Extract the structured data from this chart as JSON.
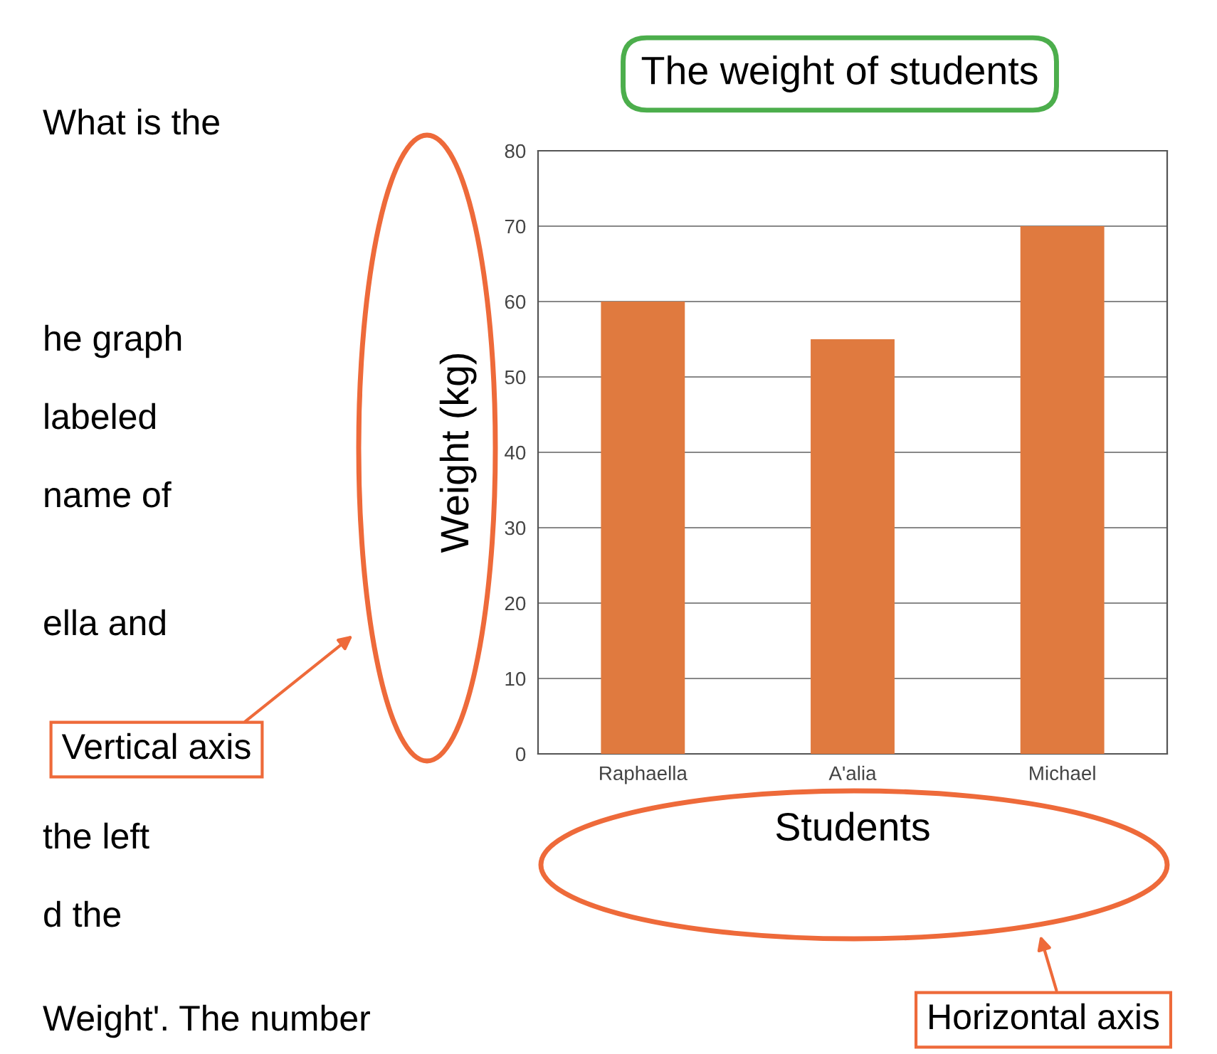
{
  "chart_data": {
    "type": "bar",
    "title": "The weight of students",
    "xlabel": "Students",
    "ylabel": "Weight (kg)",
    "categories": [
      "Raphaella",
      "A'alia",
      "Michael"
    ],
    "values": [
      60,
      55,
      70
    ],
    "color": "#e07a3f",
    "ylim": [
      0,
      80
    ],
    "yticks": [
      0,
      10,
      20,
      30,
      40,
      50,
      60,
      70,
      80
    ],
    "grid": "y",
    "annotations": [
      "What is the",
      "he graph",
      "labeled",
      "name of",
      "ella and",
      "the left",
      "d the",
      "Weight'. The number",
      "Vertical axis",
      "Horizontal axis"
    ]
  }
}
